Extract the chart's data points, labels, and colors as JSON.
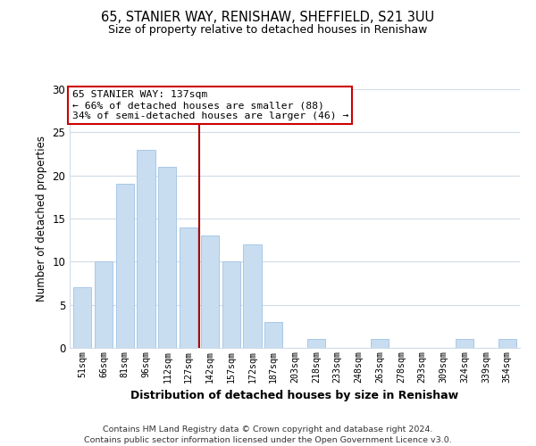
{
  "title1": "65, STANIER WAY, RENISHAW, SHEFFIELD, S21 3UU",
  "title2": "Size of property relative to detached houses in Renishaw",
  "xlabel": "Distribution of detached houses by size in Renishaw",
  "ylabel": "Number of detached properties",
  "bar_color": "#c8ddf0",
  "bar_edge_color": "#a8c8e8",
  "categories": [
    "51sqm",
    "66sqm",
    "81sqm",
    "96sqm",
    "112sqm",
    "127sqm",
    "142sqm",
    "157sqm",
    "172sqm",
    "187sqm",
    "203sqm",
    "218sqm",
    "233sqm",
    "248sqm",
    "263sqm",
    "278sqm",
    "293sqm",
    "309sqm",
    "324sqm",
    "339sqm",
    "354sqm"
  ],
  "values": [
    7,
    10,
    19,
    23,
    21,
    14,
    13,
    10,
    12,
    3,
    0,
    1,
    0,
    0,
    1,
    0,
    0,
    0,
    1,
    0,
    1
  ],
  "ylim": [
    0,
    30
  ],
  "yticks": [
    0,
    5,
    10,
    15,
    20,
    25,
    30
  ],
  "vline_color": "#aa0000",
  "annotation_title": "65 STANIER WAY: 137sqm",
  "annotation_line1": "← 66% of detached houses are smaller (88)",
  "annotation_line2": "34% of semi-detached houses are larger (46) →",
  "annotation_box_color": "#ffffff",
  "annotation_box_edge": "#cc0000",
  "footer1": "Contains HM Land Registry data © Crown copyright and database right 2024.",
  "footer2": "Contains public sector information licensed under the Open Government Licence v3.0.",
  "background_color": "#ffffff",
  "grid_color": "#d0dce8"
}
